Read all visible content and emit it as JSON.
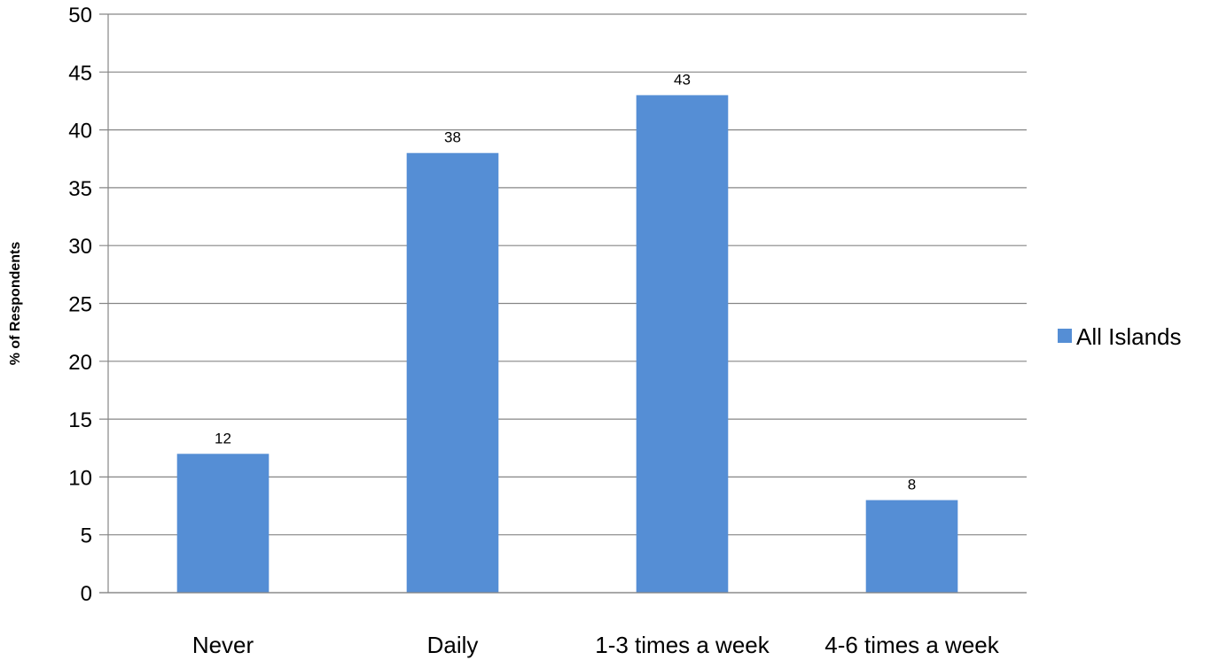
{
  "chart_data": {
    "type": "bar",
    "categories": [
      "Never",
      "Daily",
      "1-3 times a week",
      "4-6 times a week"
    ],
    "series": [
      {
        "name": "All Islands",
        "values": [
          12,
          38,
          43,
          8
        ],
        "color": "#558ed5"
      }
    ],
    "data_labels": [
      "12",
      "38",
      "43",
      "8"
    ],
    "ylabel": "% of Respondents",
    "xlabel": "",
    "ylim": [
      0,
      50
    ],
    "yticks": [
      0,
      5,
      10,
      15,
      20,
      25,
      30,
      35,
      40,
      45,
      50
    ],
    "grid": true,
    "gridline_color": "#868686",
    "legend_position": "right"
  }
}
